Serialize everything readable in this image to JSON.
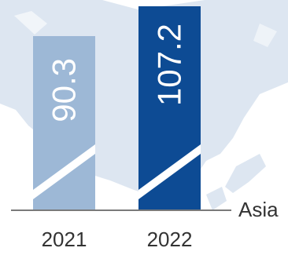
{
  "chart_data": {
    "type": "bar",
    "categories": [
      "2021",
      "2022"
    ],
    "values": [
      90.3,
      107.2
    ],
    "value_labels": [
      "90.3",
      "107.2"
    ],
    "region": "Asia",
    "axis_break": true,
    "value_label_orientation": "vertical",
    "colors": {
      "2021": "#9db8d6",
      "2022": "#0d4b94",
      "baseline": "#7a7a7a",
      "map": "#dde6f1"
    }
  }
}
